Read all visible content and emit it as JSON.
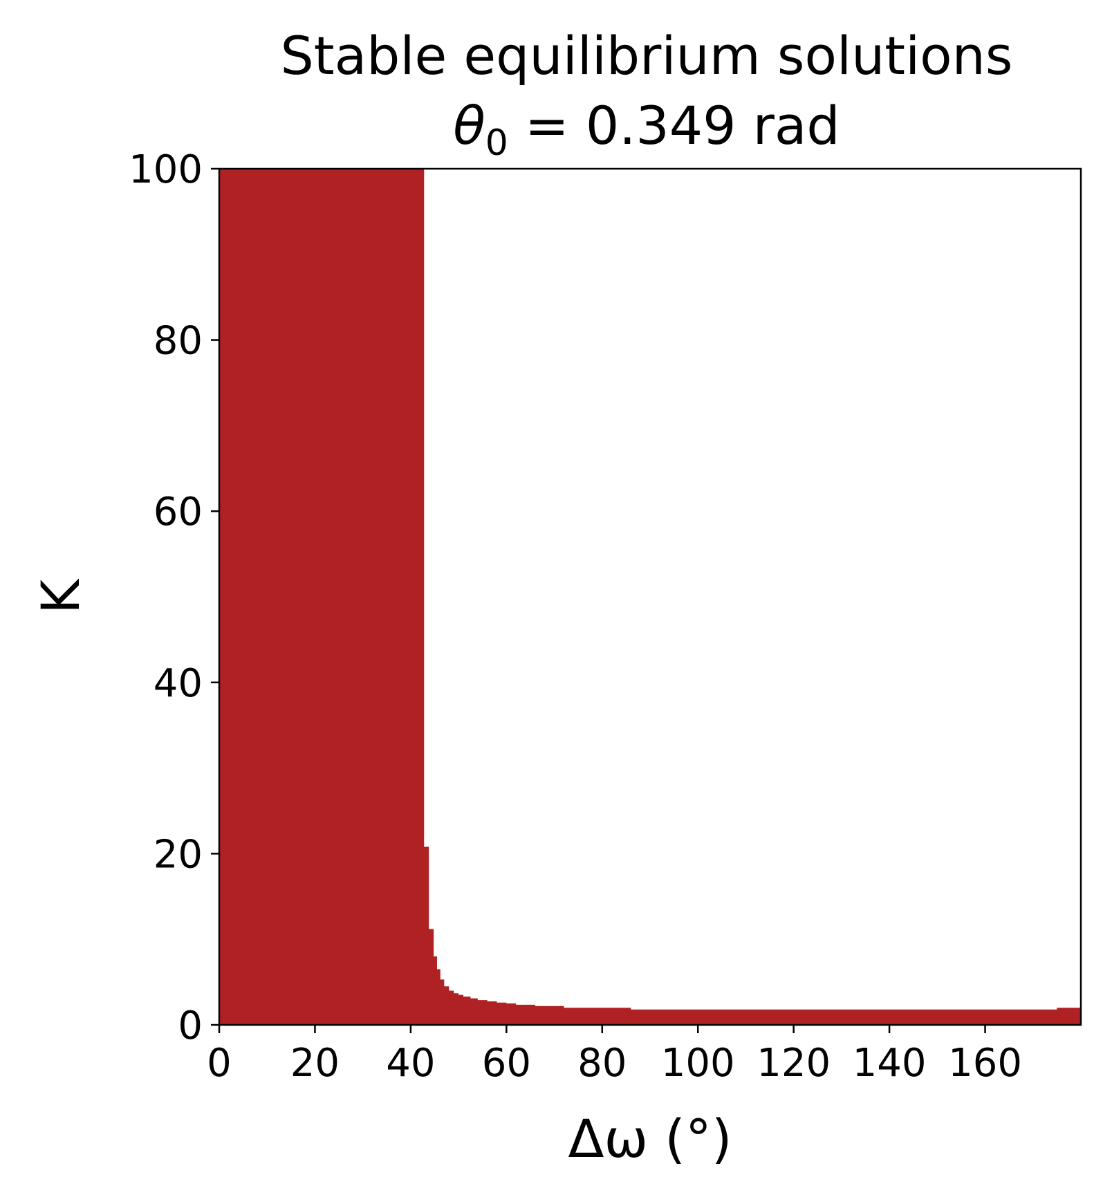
{
  "chart_data": {
    "type": "area",
    "title": "Stable equilibrium solutions",
    "subtitle": "θ₀ = 0.349 rad",
    "subtitle_parts": {
      "symbol": "θ",
      "subscript": "0",
      "rest": " = 0.349 rad"
    },
    "xlabel": "Δω (°)",
    "ylabel": "K",
    "xlim": [
      0,
      180
    ],
    "ylim": [
      0,
      100
    ],
    "xticks": [
      "0",
      "20",
      "40",
      "60",
      "80",
      "100",
      "120",
      "140",
      "160"
    ],
    "xtick_values": [
      0,
      20,
      40,
      60,
      80,
      100,
      120,
      140,
      160
    ],
    "yticks": [
      "0",
      "20",
      "40",
      "60",
      "80",
      "100"
    ],
    "ytick_values": [
      0,
      20,
      40,
      60,
      80,
      100
    ],
    "grid": false,
    "fill_color": "#b02123",
    "series": [
      {
        "x": [
          0,
          42.8,
          42.8,
          43.8,
          43.8,
          44.8,
          44.8,
          45.5,
          45.5,
          46.2,
          46.2,
          47.0,
          47.0,
          48.0,
          48.0,
          49.0,
          49.0,
          50.0,
          50.0,
          51.0,
          51.0,
          52.5,
          52.5,
          54.0,
          54.0,
          56.0,
          56.0,
          58.0,
          58.0,
          60.0,
          60.0,
          62.0,
          62.0,
          66.0,
          66.0,
          72.0,
          72.0,
          86.0,
          86.0,
          175.0,
          175.0,
          180.0
        ],
        "y": [
          100,
          100,
          20.8,
          20.8,
          11.2,
          11.2,
          8.0,
          8.0,
          6.5,
          6.5,
          5.3,
          5.3,
          4.5,
          4.5,
          4.0,
          4.0,
          3.7,
          3.7,
          3.5,
          3.5,
          3.3,
          3.3,
          3.1,
          3.1,
          2.9,
          2.9,
          2.75,
          2.75,
          2.6,
          2.6,
          2.5,
          2.5,
          2.35,
          2.35,
          2.2,
          2.2,
          2.0,
          2.0,
          1.8,
          1.8,
          2.0,
          2.0
        ]
      }
    ]
  }
}
